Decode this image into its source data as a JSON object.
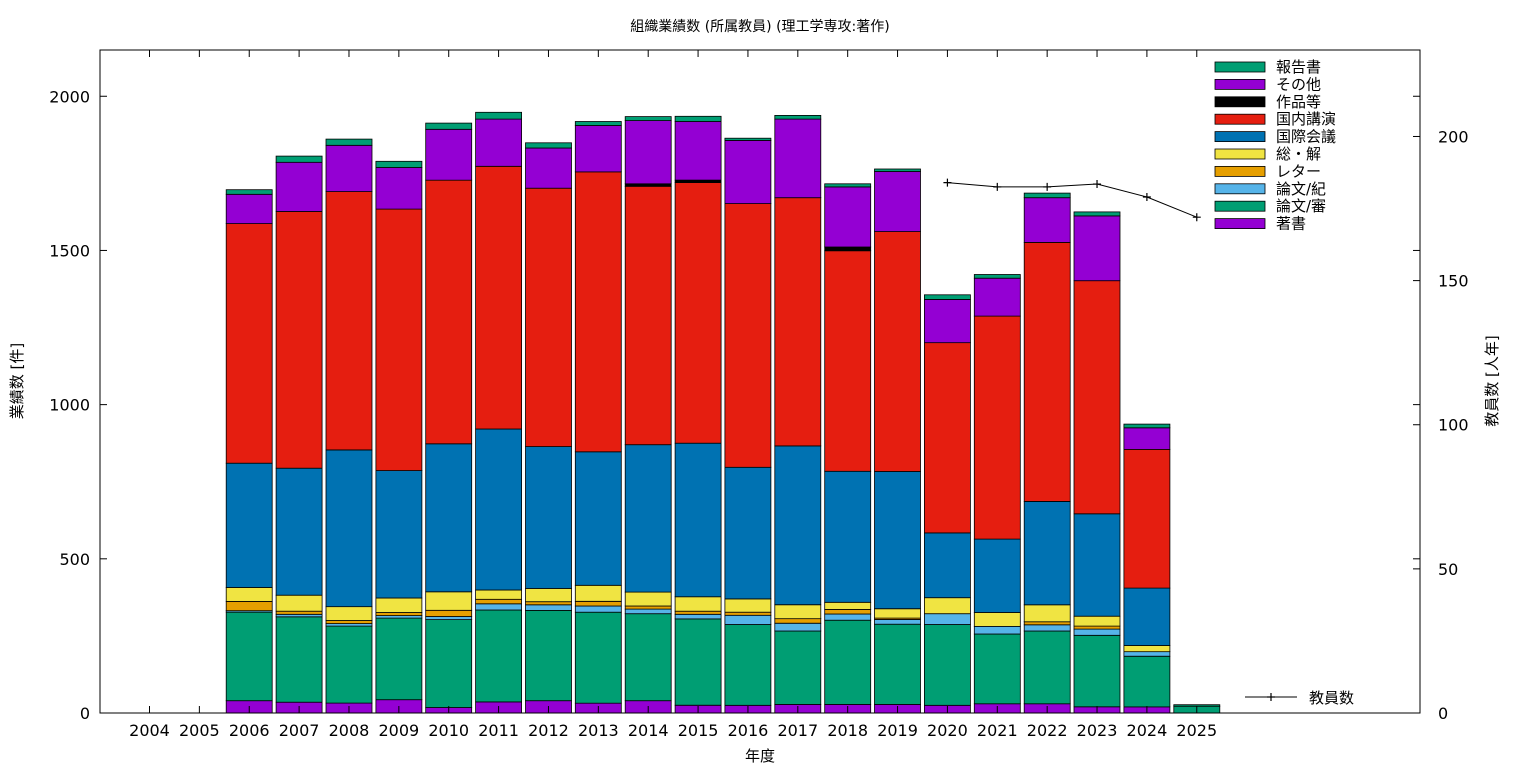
{
  "chart_data": {
    "type": "bar",
    "stacked": true,
    "title": "組織業績数 (所属教員) (理工学専攻:著作)",
    "xlabel": "年度",
    "ylabel": "業績数 [件]",
    "y2label": "教員数 [人年]",
    "ylim": [
      0,
      2150
    ],
    "y2lim": [
      0,
      230
    ],
    "yticks": [
      0,
      500,
      1000,
      1500,
      2000
    ],
    "y2ticks": [
      0,
      50,
      100,
      150,
      200
    ],
    "grid": false,
    "legend_position": "top-right",
    "categories": [
      "2004",
      "2005",
      "2006",
      "2007",
      "2008",
      "2009",
      "2010",
      "2011",
      "2012",
      "2013",
      "2014",
      "2015",
      "2016",
      "2017",
      "2018",
      "2019",
      "2020",
      "2021",
      "2022",
      "2023",
      "2024",
      "2025"
    ],
    "series": [
      {
        "name": "著書",
        "color": "#9400d3",
        "values": [
          0,
          0,
          40,
          35,
          32,
          43,
          18,
          36,
          40,
          32,
          40,
          25,
          25,
          28,
          28,
          28,
          25,
          30,
          30,
          20,
          20,
          0
        ]
      },
      {
        "name": "論文/審",
        "color": "#009e73",
        "values": [
          0,
          0,
          287,
          277,
          250,
          265,
          285,
          298,
          293,
          295,
          282,
          280,
          262,
          238,
          273,
          260,
          262,
          226,
          236,
          232,
          164,
          22
        ]
      },
      {
        "name": "論文/紀",
        "color": "#56b4e9",
        "values": [
          0,
          0,
          5,
          8,
          8,
          8,
          10,
          20,
          18,
          20,
          15,
          15,
          30,
          25,
          20,
          15,
          35,
          25,
          20,
          20,
          15,
          0
        ]
      },
      {
        "name": "レター",
        "color": "#e69f00",
        "values": [
          0,
          0,
          30,
          10,
          10,
          10,
          20,
          15,
          10,
          15,
          10,
          10,
          10,
          15,
          15,
          5,
          0,
          0,
          10,
          10,
          0,
          0
        ]
      },
      {
        "name": "総・解",
        "color": "#f0e442",
        "values": [
          0,
          0,
          45,
          52,
          45,
          47,
          60,
          30,
          43,
          52,
          45,
          47,
          43,
          45,
          23,
          30,
          52,
          45,
          55,
          32,
          20,
          0
        ]
      },
      {
        "name": "国際会議",
        "color": "#0072b2",
        "values": [
          0,
          0,
          403,
          412,
          508,
          413,
          480,
          522,
          460,
          433,
          478,
          498,
          427,
          515,
          425,
          445,
          210,
          238,
          335,
          332,
          186,
          0
        ]
      },
      {
        "name": "国内講演",
        "color": "#e51e10",
        "values": [
          0,
          0,
          777,
          832,
          838,
          848,
          855,
          852,
          838,
          908,
          838,
          845,
          855,
          805,
          715,
          778,
          617,
          723,
          840,
          756,
          450,
          0
        ]
      },
      {
        "name": "作品等",
        "color": "#000000",
        "values": [
          0,
          0,
          0,
          0,
          0,
          0,
          0,
          0,
          0,
          0,
          8,
          8,
          0,
          0,
          12,
          0,
          0,
          0,
          0,
          0,
          0,
          0
        ]
      },
      {
        "name": "その他",
        "color": "#9400d3",
        "values": [
          0,
          0,
          95,
          160,
          150,
          135,
          165,
          153,
          130,
          150,
          205,
          190,
          205,
          255,
          195,
          195,
          140,
          123,
          145,
          210,
          70,
          0
        ]
      },
      {
        "name": "報告書",
        "color": "#009e73",
        "values": [
          0,
          0,
          15,
          20,
          20,
          20,
          20,
          22,
          17,
          13,
          13,
          17,
          7,
          12,
          10,
          8,
          15,
          12,
          15,
          13,
          12,
          5
        ]
      }
    ],
    "line_series": {
      "name": "教員数",
      "axis": "y2",
      "points": [
        {
          "x": "2020",
          "y": 184
        },
        {
          "x": "2021",
          "y": 182.5
        },
        {
          "x": "2022",
          "y": 182.5
        },
        {
          "x": "2023",
          "y": 183.5
        },
        {
          "x": "2024",
          "y": 179
        },
        {
          "x": "2025",
          "y": 172
        }
      ]
    }
  }
}
